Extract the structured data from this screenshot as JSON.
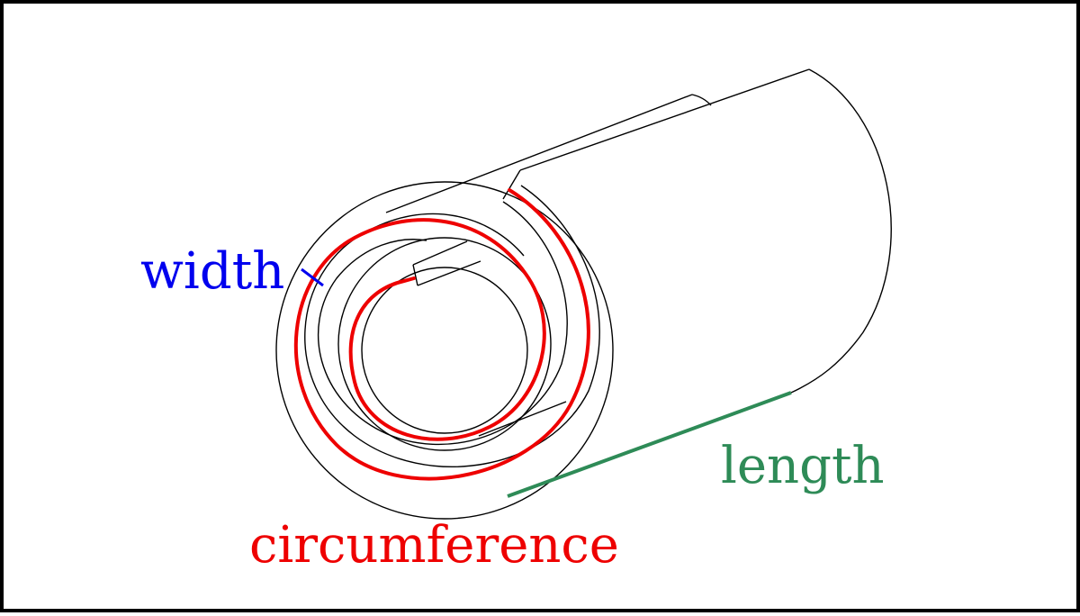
{
  "labels": {
    "width": "width",
    "length": "length",
    "circumference": "circumference"
  },
  "colors": {
    "outline": "#000000",
    "width": "#0000ee",
    "length": "#2e8b57",
    "circumference": "#ee0000",
    "background": "#ffffff"
  }
}
